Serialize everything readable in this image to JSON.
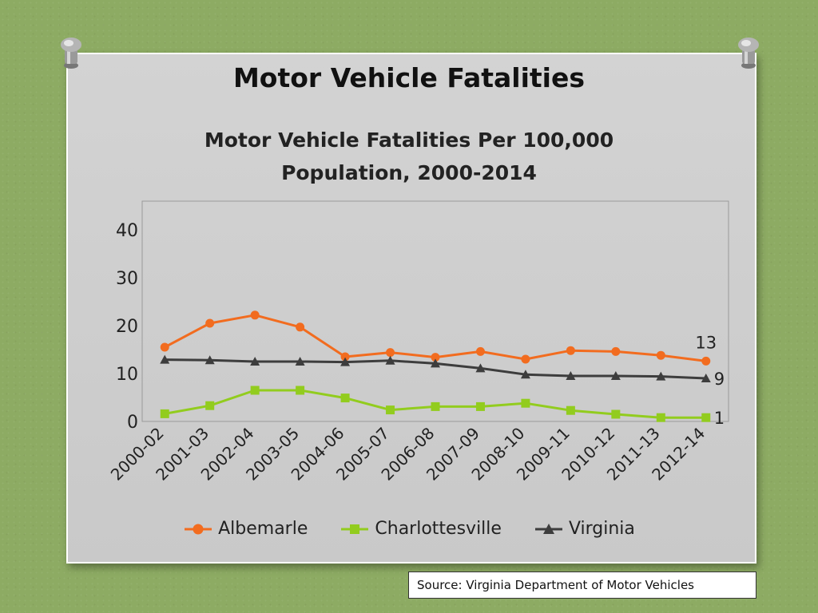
{
  "slide": {
    "title": "Motor Vehicle Fatalities",
    "source": "Source: Virginia Department of Motor Vehicles"
  },
  "chart_data": {
    "type": "line",
    "title": "Motor Vehicle Fatalities Per 100,000 Population, 2000-2014",
    "title_lines": [
      "Motor Vehicle Fatalities Per 100,000",
      "Population, 2000-2014"
    ],
    "xlabel": "",
    "ylabel": "",
    "categories": [
      "2000-02",
      "2001-03",
      "2002-04",
      "2003-05",
      "2004-06",
      "2005-07",
      "2006-08",
      "2007-09",
      "2008-10",
      "2009-11",
      "2010-12",
      "2011-13",
      "2012-14"
    ],
    "yticks": [
      0,
      10,
      20,
      30,
      40
    ],
    "ylim": [
      0,
      46
    ],
    "grid": false,
    "legend": "bottom",
    "series": [
      {
        "name": "Albemarle",
        "color": "#f26c1f",
        "marker": "circle",
        "values": [
          15.5,
          20.5,
          22.2,
          19.7,
          13.5,
          14.4,
          13.4,
          14.6,
          13.0,
          14.8,
          14.6,
          13.8,
          12.6
        ],
        "last_label": "13"
      },
      {
        "name": "Charlottesville",
        "color": "#92cc1e",
        "marker": "square",
        "values": [
          1.6,
          3.3,
          6.5,
          6.5,
          4.9,
          2.4,
          3.1,
          3.1,
          3.8,
          2.3,
          1.5,
          0.8,
          0.8
        ],
        "last_label": "1"
      },
      {
        "name": "Virginia",
        "color": "#3d3d3d",
        "marker": "triangle",
        "values": [
          12.9,
          12.8,
          12.5,
          12.5,
          12.4,
          12.7,
          12.1,
          11.1,
          9.8,
          9.5,
          9.5,
          9.4,
          9.0
        ],
        "last_label": "9"
      }
    ]
  }
}
